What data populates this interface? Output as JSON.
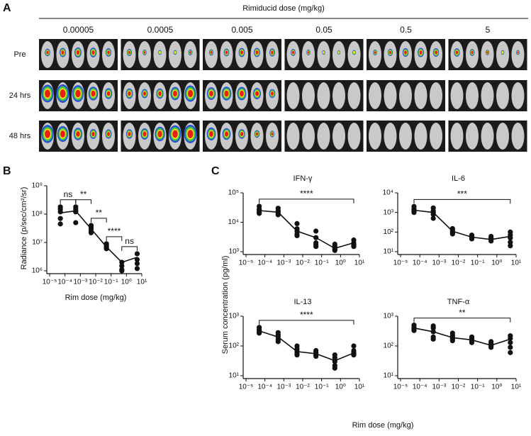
{
  "panel_a": {
    "label": "A",
    "header": "Rimiducid dose (mg/kg)",
    "doses": [
      "0.00005",
      "0.0005",
      "0.005",
      "0.05",
      "0.5",
      "5"
    ],
    "rows": [
      "Pre",
      "24 hrs",
      "48 hrs"
    ]
  },
  "panel_b": {
    "label": "B"
  },
  "panel_c": {
    "label": "C",
    "ylabel": "Serum concentration (pg/ml)",
    "xlabel": "Rim dose (mg/kg)"
  },
  "chart_data": [
    {
      "type": "scatter",
      "xlabel": "Rim dose (mg/kg)",
      "ylabel": "Radiance (p/sec/cm²/sr)",
      "log_x": true,
      "log_y": true,
      "color": "#111111",
      "xlim": [
        1e-05,
        10
      ],
      "ylim": [
        1000000,
        1000000000
      ],
      "xticks": [
        {
          "value": 1e-05,
          "label": "10⁻⁵"
        },
        {
          "value": 0.0001,
          "label": "10⁻⁴"
        },
        {
          "value": 0.001,
          "label": "10⁻³"
        },
        {
          "value": 0.01,
          "label": "10⁻²"
        },
        {
          "value": 0.1,
          "label": "10⁻¹"
        },
        {
          "value": 1,
          "label": "10⁰"
        },
        {
          "value": 10,
          "label": "10¹"
        }
      ],
      "yticks": [
        {
          "value": 1000000,
          "label": "10⁶"
        },
        {
          "value": 10000000,
          "label": "10⁷"
        },
        {
          "value": 100000000,
          "label": "10⁸"
        },
        {
          "value": 1000000000,
          "label": "10⁹"
        }
      ],
      "x": [
        5e-05,
        5e-05,
        5e-05,
        5e-05,
        5e-05,
        0.0005,
        0.0005,
        0.0005,
        0.0005,
        0.0005,
        0.005,
        0.005,
        0.005,
        0.005,
        0.005,
        0.05,
        0.05,
        0.05,
        0.05,
        0.05,
        0.5,
        0.5,
        0.5,
        0.5,
        5,
        5,
        5,
        5
      ],
      "values": [
        180000000,
        150000000,
        120000000,
        70000000,
        45000000,
        180000000,
        150000000,
        130000000,
        120000000,
        50000000,
        40000000,
        35000000,
        30000000,
        25000000,
        22000000,
        9000000,
        8000000,
        7000000,
        6500000,
        6000000,
        2000000,
        1500000,
        1100000,
        1000000,
        4000000,
        2500000,
        1800000,
        1200000
      ],
      "line_x": [
        5e-05,
        0.0005,
        0.005,
        0.05,
        0.5,
        5
      ],
      "line_values": [
        110000000,
        130000000,
        30000000,
        7000000,
        2000000,
        3000000
      ],
      "brackets": [
        {
          "from": 5e-05,
          "to": 0.0005,
          "label": "ns"
        },
        {
          "from": 0.0005,
          "to": 0.005,
          "label": "**"
        },
        {
          "from": 0.005,
          "to": 0.05,
          "label": "**"
        },
        {
          "from": 0.05,
          "to": 0.5,
          "label": "****"
        },
        {
          "from": 0.5,
          "to": 5,
          "label": "ns"
        }
      ]
    },
    {
      "type": "scatter",
      "title": "IFN-γ",
      "log_x": true,
      "log_y": true,
      "color": "#111111",
      "xlim": [
        1e-05,
        10
      ],
      "ylim": [
        1000,
        100000
      ],
      "xticks": [
        {
          "value": 1e-05,
          "label": "10⁻⁵"
        },
        {
          "value": 0.0001,
          "label": "10⁻⁴"
        },
        {
          "value": 0.001,
          "label": "10⁻³"
        },
        {
          "value": 0.01,
          "label": "10⁻²"
        },
        {
          "value": 0.1,
          "label": "10⁻¹"
        },
        {
          "value": 1,
          "label": "10⁰"
        },
        {
          "value": 10,
          "label": "10¹"
        }
      ],
      "yticks": [
        {
          "value": 1000,
          "label": "10³"
        },
        {
          "value": 10000,
          "label": "10⁴"
        },
        {
          "value": 100000,
          "label": "10⁵"
        }
      ],
      "x": [
        5e-05,
        5e-05,
        5e-05,
        5e-05,
        5e-05,
        0.0005,
        0.0005,
        0.0005,
        0.0005,
        0.0005,
        0.005,
        0.005,
        0.005,
        0.005,
        0.005,
        0.05,
        0.05,
        0.05,
        0.05,
        0.05,
        0.5,
        0.5,
        0.5,
        0.5,
        0.5,
        5,
        5,
        5,
        5,
        5
      ],
      "values": [
        35000,
        28000,
        25000,
        22000,
        20000,
        30000,
        25000,
        22000,
        20000,
        18000,
        9000,
        6000,
        5000,
        4000,
        3500,
        5000,
        3000,
        2000,
        1700,
        1500,
        1800,
        1500,
        1300,
        1200,
        1100,
        2500,
        2000,
        1800,
        1600,
        1500
      ],
      "line_x": [
        5e-05,
        0.0005,
        0.005,
        0.05,
        0.5,
        5
      ],
      "line_values": [
        25000,
        22000,
        5000,
        3000,
        1300,
        2000
      ],
      "brackets": [
        {
          "from": 5e-05,
          "to": 5,
          "label": "****"
        }
      ]
    },
    {
      "type": "scatter",
      "title": "IL-6",
      "log_x": true,
      "log_y": true,
      "color": "#111111",
      "xlim": [
        1e-05,
        10
      ],
      "ylim": [
        10,
        10000
      ],
      "xticks": [
        {
          "value": 1e-05,
          "label": "10⁻⁵"
        },
        {
          "value": 0.0001,
          "label": "10⁻⁴"
        },
        {
          "value": 0.001,
          "label": "10⁻³"
        },
        {
          "value": 0.01,
          "label": "10⁻²"
        },
        {
          "value": 0.1,
          "label": "10⁻¹"
        },
        {
          "value": 1,
          "label": "10⁰"
        },
        {
          "value": 10,
          "label": "10¹"
        }
      ],
      "yticks": [
        {
          "value": 10,
          "label": "10¹"
        },
        {
          "value": 100,
          "label": "10²"
        },
        {
          "value": 1000,
          "label": "10³"
        },
        {
          "value": 10000,
          "label": "10⁴"
        }
      ],
      "x": [
        5e-05,
        5e-05,
        5e-05,
        5e-05,
        5e-05,
        0.0005,
        0.0005,
        0.0005,
        0.0005,
        0.0005,
        0.005,
        0.005,
        0.005,
        0.005,
        0.005,
        0.05,
        0.05,
        0.05,
        0.05,
        0.05,
        0.5,
        0.5,
        0.5,
        0.5,
        0.5,
        5,
        5,
        5,
        5,
        5
      ],
      "values": [
        2000,
        1500,
        1300,
        1100,
        1000,
        1700,
        1200,
        1000,
        800,
        500,
        150,
        120,
        100,
        90,
        80,
        70,
        60,
        55,
        50,
        45,
        60,
        50,
        45,
        40,
        35,
        100,
        70,
        50,
        30,
        20
      ],
      "line_x": [
        5e-05,
        0.0005,
        0.005,
        0.05,
        0.5,
        5
      ],
      "line_values": [
        1300,
        1000,
        110,
        55,
        42,
        60
      ],
      "brackets": [
        {
          "from": 5e-05,
          "to": 5,
          "label": "***"
        }
      ]
    },
    {
      "type": "scatter",
      "title": "IL-13",
      "log_x": true,
      "log_y": true,
      "color": "#111111",
      "xlim": [
        1e-05,
        10
      ],
      "ylim": [
        10,
        1000
      ],
      "xticks": [
        {
          "value": 1e-05,
          "label": "10⁻⁵"
        },
        {
          "value": 0.0001,
          "label": "10⁻⁴"
        },
        {
          "value": 0.001,
          "label": "10⁻³"
        },
        {
          "value": 0.01,
          "label": "10⁻²"
        },
        {
          "value": 0.1,
          "label": "10⁻¹"
        },
        {
          "value": 1,
          "label": "10⁰"
        },
        {
          "value": 10,
          "label": "10¹"
        }
      ],
      "yticks": [
        {
          "value": 10,
          "label": "10¹"
        },
        {
          "value": 100,
          "label": "10²"
        },
        {
          "value": 1000,
          "label": "10³"
        }
      ],
      "x": [
        5e-05,
        5e-05,
        5e-05,
        5e-05,
        5e-05,
        0.0005,
        0.0005,
        0.0005,
        0.0005,
        0.0005,
        0.005,
        0.005,
        0.005,
        0.005,
        0.005,
        0.05,
        0.05,
        0.05,
        0.05,
        0.05,
        0.5,
        0.5,
        0.5,
        0.5,
        0.5,
        5,
        5,
        5,
        5,
        5
      ],
      "values": [
        420,
        350,
        320,
        290,
        270,
        280,
        230,
        200,
        160,
        140,
        100,
        80,
        65,
        55,
        50,
        70,
        60,
        55,
        50,
        45,
        50,
        40,
        30,
        22,
        18,
        100,
        70,
        60,
        55,
        50
      ],
      "line_x": [
        5e-05,
        0.0005,
        0.005,
        0.05,
        0.5,
        5
      ],
      "line_values": [
        320,
        200,
        65,
        55,
        32,
        58
      ],
      "brackets": [
        {
          "from": 5e-05,
          "to": 5,
          "label": "****"
        }
      ]
    },
    {
      "type": "scatter",
      "title": "TNF-α",
      "log_x": true,
      "log_y": true,
      "color": "#111111",
      "xlim": [
        1e-05,
        10
      ],
      "ylim": [
        10,
        1000
      ],
      "xticks": [
        {
          "value": 1e-05,
          "label": "10⁻⁵"
        },
        {
          "value": 0.0001,
          "label": "10⁻⁴"
        },
        {
          "value": 0.001,
          "label": "10⁻³"
        },
        {
          "value": 0.01,
          "label": "10⁻²"
        },
        {
          "value": 0.1,
          "label": "10⁻¹"
        },
        {
          "value": 1,
          "label": "10⁰"
        },
        {
          "value": 10,
          "label": "10¹"
        }
      ],
      "yticks": [
        {
          "value": 10,
          "label": "10¹"
        },
        {
          "value": 100,
          "label": "10²"
        },
        {
          "value": 1000,
          "label": "10³"
        }
      ],
      "x": [
        5e-05,
        5e-05,
        5e-05,
        5e-05,
        5e-05,
        0.0005,
        0.0005,
        0.0005,
        0.0005,
        0.0005,
        0.005,
        0.005,
        0.005,
        0.005,
        0.005,
        0.05,
        0.05,
        0.05,
        0.05,
        0.05,
        0.5,
        0.5,
        0.5,
        0.5,
        0.5,
        5,
        5,
        5,
        5,
        5
      ],
      "values": [
        500,
        420,
        380,
        350,
        330,
        470,
        400,
        300,
        200,
        170,
        270,
        220,
        190,
        170,
        150,
        200,
        180,
        160,
        140,
        130,
        140,
        120,
        110,
        100,
        90,
        220,
        180,
        130,
        90,
        60
      ],
      "line_x": [
        5e-05,
        0.0005,
        0.005,
        0.05,
        0.5,
        5
      ],
      "line_values": [
        400,
        300,
        190,
        160,
        105,
        170
      ],
      "brackets": [
        {
          "from": 5e-05,
          "to": 5,
          "label": "**"
        }
      ]
    }
  ]
}
